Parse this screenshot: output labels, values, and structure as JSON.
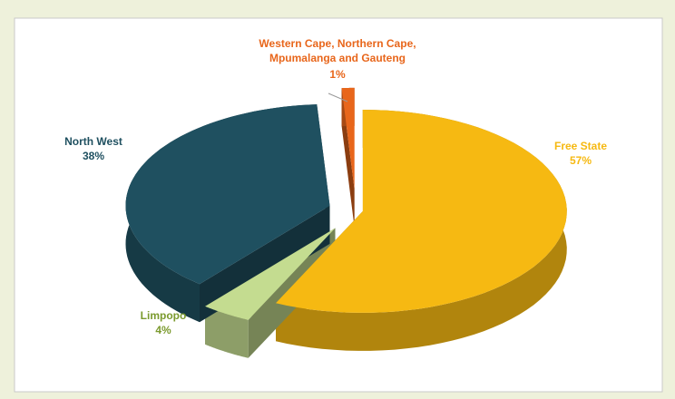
{
  "chart_data": {
    "type": "pie",
    "categories": [
      "Free State",
      "Limpopo",
      "North West",
      "Western Cape, Northern Cape, Mpumalanga and Gauteng"
    ],
    "values": [
      57,
      4,
      38,
      1
    ],
    "value_labels": [
      "57%",
      "4%",
      "38%",
      "1%"
    ],
    "colors": [
      "#f6b912",
      "#c4dc90",
      "#1f5060",
      "#e8661b"
    ]
  }
}
